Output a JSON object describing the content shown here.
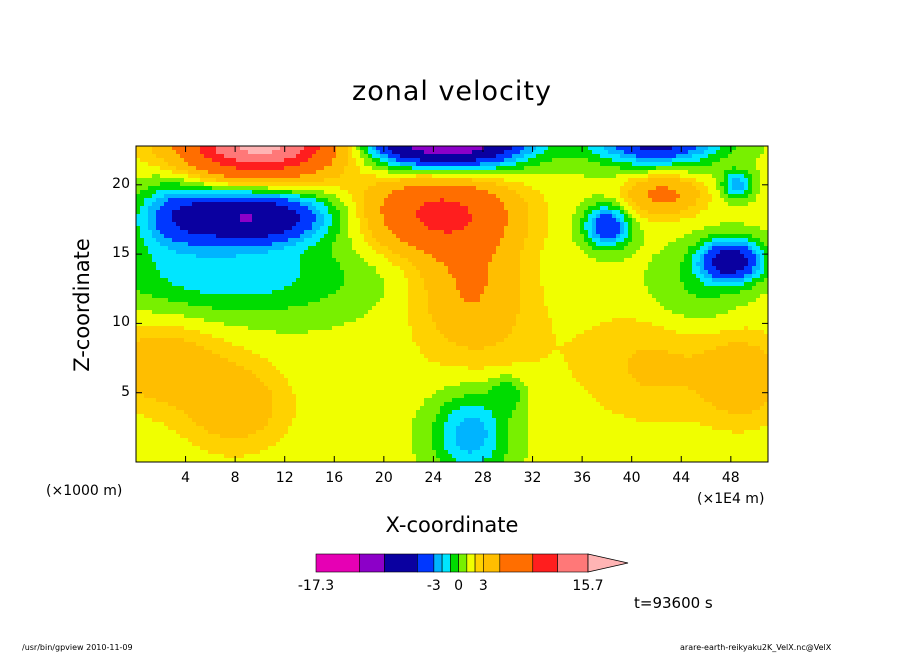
{
  "chart_data": {
    "type": "heatmap",
    "title": "zonal velocity",
    "xlabel": "X-coordinate",
    "ylabel": "Z-coordinate",
    "x_unit_left": "(×1000 m)",
    "x_unit_right": "(×1E4 m)",
    "x_ticks": [
      "4",
      "8",
      "12",
      "16",
      "20",
      "24",
      "28",
      "32",
      "36",
      "40",
      "44",
      "48"
    ],
    "y_ticks": [
      "5",
      "10",
      "15",
      "20"
    ],
    "xlim": [
      0,
      51
    ],
    "ylim": [
      0,
      22.8
    ],
    "colorbar": {
      "tick_labels": [
        "-17.3",
        "-3",
        "0",
        "3",
        "15.7"
      ],
      "tick_values": [
        -17.3,
        -3,
        0,
        3,
        15.7
      ],
      "levels": [
        -17.3,
        -12,
        -9,
        -5,
        -3,
        -2,
        -1,
        0,
        1,
        2,
        3,
        5,
        9,
        12,
        15.7
      ],
      "colors": [
        "#e600b4",
        "#8c00c8",
        "#0a00a0",
        "#0037ff",
        "#00b4ff",
        "#00e6ff",
        "#00dc00",
        "#78f000",
        "#f0ff00",
        "#ffd200",
        "#ffbe00",
        "#ff6e00",
        "#ff1e1e",
        "#ff7878",
        "#ffb4b4"
      ]
    },
    "regions": [
      {
        "label": "upper-left positive max",
        "x": 10,
        "z": 22,
        "value": 12
      },
      {
        "label": "upper-left negative core",
        "x": 8,
        "z": 18,
        "value": -12
      },
      {
        "label": "upper-middle negative core",
        "x": 25,
        "z": 22,
        "value": -12
      },
      {
        "label": "mid positive core",
        "x": 24,
        "z": 18,
        "value": 9
      },
      {
        "label": "right positive core",
        "x": 42,
        "z": 19,
        "value": 5
      },
      {
        "label": "right negative cores",
        "x": 48,
        "z": 15,
        "value": -9
      },
      {
        "label": "lower-mid negative",
        "x": 27,
        "z": 2,
        "value": -2
      }
    ],
    "grid": false,
    "legend": "bottom-colorbar"
  },
  "time_label": "t=93600 s",
  "footer": {
    "left": "/usr/bin/gpview   2010-11-09",
    "right": "arare-earth-reikyaku2K_VelX.nc@VelX"
  }
}
